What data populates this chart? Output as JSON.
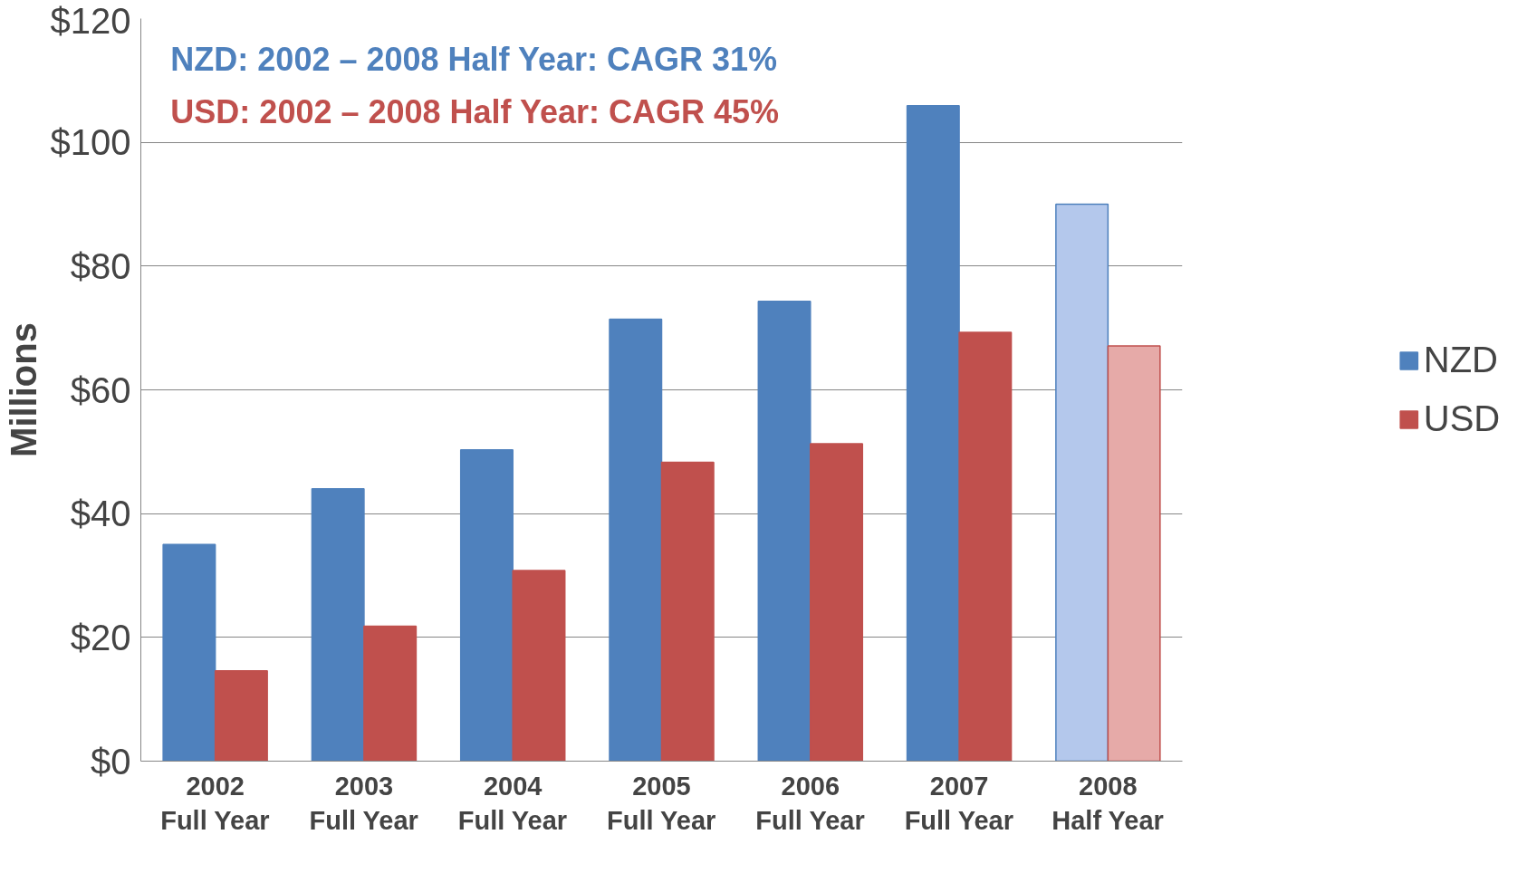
{
  "chart_data": {
    "type": "bar",
    "ylabel": "Millions",
    "categories": [
      "2002\nFull Year",
      "2003\nFull Year",
      "2004\nFull Year",
      "2005\nFull Year",
      "2006\nFull Year",
      "2007\nFull Year",
      "2008\nHalf Year"
    ],
    "series": [
      {
        "name": "NZD",
        "color": "#4f81bd",
        "colors": [
          "#4f81bd",
          "#4f81bd",
          "#4f81bd",
          "#4f81bd",
          "#4f81bd",
          "#4f81bd",
          "#b4c8ec"
        ],
        "values": [
          35,
          44,
          50.3,
          71.4,
          74.3,
          105.9,
          90
        ]
      },
      {
        "name": "USD",
        "color": "#c0504d",
        "colors": [
          "#c0504d",
          "#c0504d",
          "#c0504d",
          "#c0504d",
          "#c0504d",
          "#c0504d",
          "#e6aaa8"
        ],
        "values": [
          14.6,
          21.8,
          30.8,
          48.3,
          51.3,
          69.3,
          67.1
        ]
      }
    ],
    "annotations": [
      "NZD: 2002 – 2008 Half Year: CAGR 31%",
      "USD: 2002 – 2008 Half Year: CAGR 45%"
    ],
    "ylim": [
      0,
      120
    ],
    "yticks": [
      {
        "value": 0,
        "label": "$0"
      },
      {
        "value": 20,
        "label": "$20"
      },
      {
        "value": 40,
        "label": "$40"
      },
      {
        "value": 60,
        "label": "$60"
      },
      {
        "value": 80,
        "label": "$80"
      },
      {
        "value": 100,
        "label": "$100"
      },
      {
        "value": 120,
        "label": "$120"
      }
    ],
    "grid": "y",
    "legend": "right"
  }
}
